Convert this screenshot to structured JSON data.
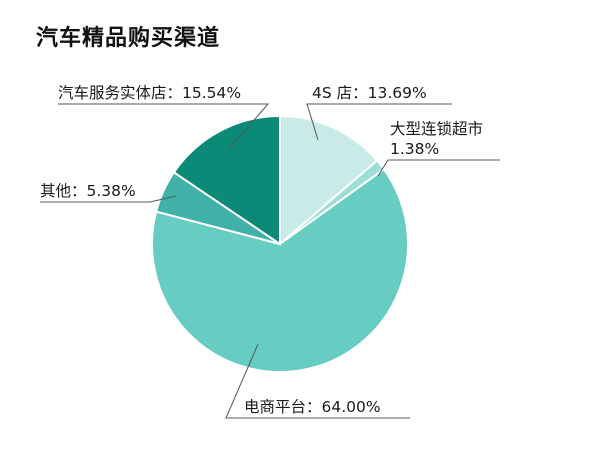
{
  "title": "汽车精品购买渠道",
  "chart_data": {
    "type": "pie",
    "title": "汽车精品购买渠道",
    "slices": [
      {
        "label": "4S 店：13.69%",
        "value": 13.69,
        "color": "#c9ebe8"
      },
      {
        "label_lines": [
          "大型连锁超市",
          "1.38%"
        ],
        "value": 1.38,
        "color": "#9ddfd8"
      },
      {
        "label": "电商平台：64.00%",
        "value": 64.0,
        "color": "#67cdc3"
      },
      {
        "label": "其他：5.38%",
        "value": 5.38,
        "color": "#3fb1a9"
      },
      {
        "label": "汽车服务实体店：15.54%",
        "value": 15.54,
        "color": "#0b8a78"
      }
    ]
  }
}
